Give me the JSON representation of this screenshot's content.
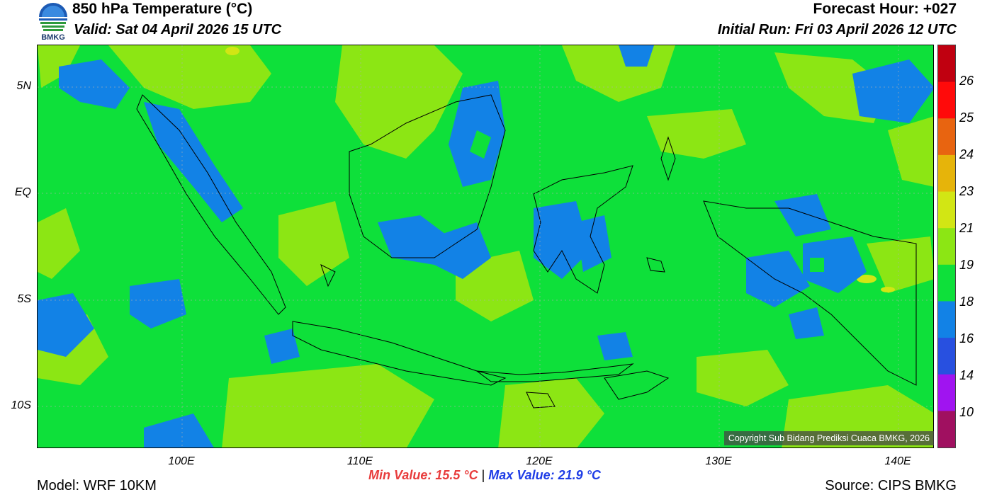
{
  "header": {
    "title": "850 hPa Temperature (°C)",
    "valid": "Valid: Sat 04 April 2026 15 UTC",
    "forecast_hour": "Forecast Hour: +027",
    "initial_run": "Initial Run: Fri 03 April 2026 12 UTC",
    "logo_text": "BMKG"
  },
  "map": {
    "lat_labels": [
      "5N",
      "EQ",
      "5S",
      "10S"
    ],
    "lon_labels": [
      "100E",
      "110E",
      "120E",
      "130E",
      "140E"
    ],
    "copyright": "Copyright Sub Bidang Prediksi Cuaca BMKG, 2026",
    "background_color": "#0ee03a"
  },
  "legend": {
    "labels": [
      "26",
      "25",
      "24",
      "23",
      "21",
      "19",
      "18",
      "16",
      "14",
      "10"
    ],
    "colors": [
      "#c00010",
      "#ff0a0a",
      "#e86410",
      "#e6b40a",
      "#d2e614",
      "#8ce614",
      "#0ee03a",
      "#1282e6",
      "#2850e0",
      "#a014f0",
      "#a01060"
    ]
  },
  "footer": {
    "min_value": "Min Value: 15.5 °C",
    "separator": "|",
    "max_value": "Max Value: 21.9 °C",
    "model": "Model: WRF 10KM",
    "source": "Source: CIPS BMKG"
  }
}
